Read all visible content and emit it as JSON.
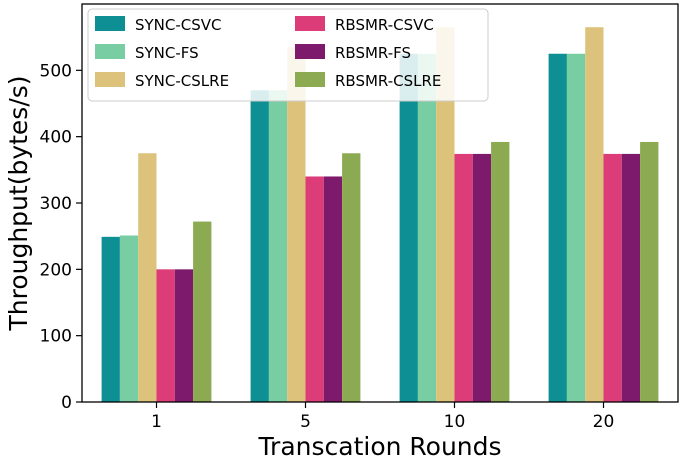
{
  "chart_data": {
    "type": "bar",
    "title": "",
    "xlabel": "Transcation Rounds",
    "ylabel": "Throughput(bytes/s)",
    "categories": [
      "1",
      "5",
      "10",
      "20"
    ],
    "ylim": [
      0,
      600
    ],
    "yticks": [
      0,
      100,
      200,
      300,
      400,
      500
    ],
    "grid": false,
    "legend_position": "top-left",
    "series": [
      {
        "name": "SYNC-CSVC",
        "color": "#0e8f94",
        "values": [
          249,
          470,
          525,
          525
        ]
      },
      {
        "name": "SYNC-FS",
        "color": "#79cda3",
        "values": [
          251,
          470,
          525,
          525
        ]
      },
      {
        "name": "SYNC-CSLRE",
        "color": "#dcc27a",
        "values": [
          375,
          535,
          565,
          565
        ]
      },
      {
        "name": "RBSMR-CSVC",
        "color": "#dc3d78",
        "values": [
          200,
          340,
          374,
          374
        ]
      },
      {
        "name": "RBSMR-FS",
        "color": "#7e1a6b",
        "values": [
          200,
          340,
          374,
          374
        ]
      },
      {
        "name": "RBSMR-CSLRE",
        "color": "#8caa52",
        "values": [
          272,
          375,
          392,
          392
        ]
      }
    ]
  }
}
